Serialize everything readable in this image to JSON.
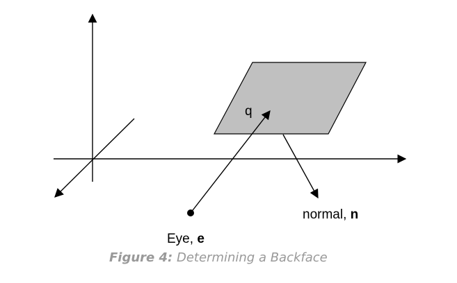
{
  "labels": {
    "q": "q",
    "normal_prefix": "normal, ",
    "normal_symbol": "n",
    "eye_prefix": "Eye, ",
    "eye_symbol": "e"
  },
  "caption": {
    "figure_label": "Figure 4:",
    "text": " Determining a Backface"
  },
  "colors": {
    "plane_fill": "#c0c0c0",
    "line": "#000000",
    "caption": "#999999"
  }
}
